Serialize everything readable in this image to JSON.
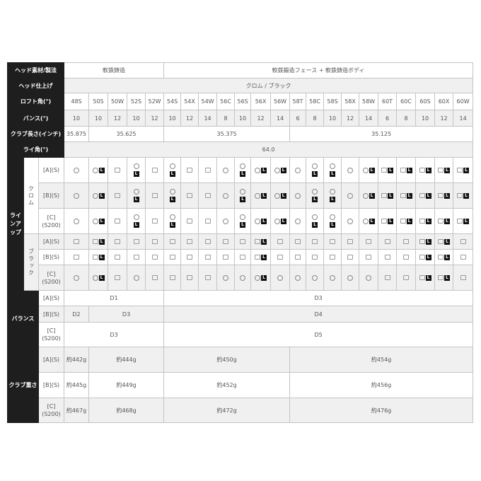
{
  "labels": {
    "head_material": "ヘッド素材/製法",
    "head_finish": "ヘッド仕上げ",
    "loft": "ロフト角(°)",
    "bounce": "バンス(°)",
    "length": "クラブ長さ(インチ)",
    "lie": "ライ角(°)",
    "lineup": "ラインアップ",
    "balance": "バランス",
    "weight": "クラブ重さ",
    "chrome": "クロム",
    "black": "ブラック",
    "shaft_a": "[A](S)",
    "shaft_b": "[B](S)",
    "shaft_c": "[C](S200)"
  },
  "lineup_icon_letter": "L",
  "head_material": [
    {
      "text": "軟鉄鋳造",
      "span": 5
    },
    {
      "text": "軟鉄鍛造フェース + 軟鉄鋳造ボディ",
      "span": 17
    }
  ],
  "head_finish": "クロム / ブラック",
  "loft": [
    "48S",
    "50S",
    "50W",
    "52S",
    "52W",
    "54S",
    "54X",
    "54W",
    "56C",
    "56S",
    "56X",
    "56W",
    "58T",
    "58C",
    "58S",
    "58X",
    "58W",
    "60T",
    "60C",
    "60S",
    "60X",
    "60W"
  ],
  "bounce": [
    "10",
    "10",
    "12",
    "10",
    "12",
    "10",
    "12",
    "14",
    "8",
    "10",
    "12",
    "14",
    "6",
    "8",
    "10",
    "12",
    "14",
    "6",
    "8",
    "10",
    "12",
    "14"
  ],
  "length": [
    {
      "text": "35.875",
      "span": 1
    },
    {
      "text": "35.625",
      "span": 4
    },
    {
      "text": "35.375",
      "span": 7
    },
    {
      "text": "35.125",
      "span": 10
    }
  ],
  "lie": "64.0",
  "lineup_legend": {
    "o": "circle",
    "s": "square",
    "L": "L-badge",
    "/": "stacked"
  },
  "lineup": {
    "chrome": {
      "a": [
        "o",
        "oL",
        "s",
        "o/L",
        "s",
        "o/L",
        "s",
        "s",
        "o",
        "o/L",
        "oL",
        "oL",
        "o",
        "o/L",
        "o/L",
        "o",
        "oL",
        "sL",
        "sL",
        "sL",
        "sL",
        "sL"
      ],
      "b": [
        "o",
        "oL",
        "s",
        "o/L",
        "s",
        "o/L",
        "s",
        "s",
        "o",
        "o/L",
        "oL",
        "oL",
        "o",
        "o/L",
        "o/L",
        "o",
        "oL",
        "sL",
        "sL",
        "sL",
        "sL",
        "sL"
      ],
      "c": [
        "o",
        "oL",
        "s",
        "o/L",
        "s",
        "o/L",
        "s",
        "s",
        "o",
        "o/L",
        "oL",
        "oL",
        "o",
        "o/L",
        "o/L",
        "o",
        "oL",
        "sL",
        "sL",
        "sL",
        "sL",
        "sL"
      ]
    },
    "black": {
      "a": [
        "s",
        "sL",
        "s",
        "s",
        "s",
        "s",
        "s",
        "s",
        "s",
        "s",
        "sL",
        "s",
        "s",
        "s",
        "s",
        "s",
        "s",
        "s",
        "s",
        "sL",
        "sL",
        "s"
      ],
      "b": [
        "s",
        "sL",
        "s",
        "s",
        "s",
        "s",
        "s",
        "s",
        "s",
        "s",
        "sL",
        "s",
        "s",
        "s",
        "s",
        "s",
        "s",
        "s",
        "s",
        "sL",
        "sL",
        "s"
      ],
      "c": [
        "o",
        "oL",
        "s",
        "o",
        "s",
        "s",
        "s",
        "s",
        "o",
        "o",
        "oL",
        "o",
        "o",
        "o",
        "o",
        "o",
        "o",
        "s",
        "s",
        "sL",
        "sL",
        "s"
      ]
    }
  },
  "balance": {
    "a": [
      {
        "text": "D1",
        "span": 5
      },
      {
        "text": "D3",
        "span": 17
      }
    ],
    "b": [
      {
        "text": "D2",
        "span": 1
      },
      {
        "text": "D3",
        "span": 4
      },
      {
        "text": "D4",
        "span": 17
      }
    ],
    "c": [
      {
        "text": "D3",
        "span": 5
      },
      {
        "text": "D5",
        "span": 17
      }
    ]
  },
  "weight": {
    "a": [
      {
        "text": "約442g",
        "span": 1
      },
      {
        "text": "約444g",
        "span": 4
      },
      {
        "text": "約450g",
        "span": 7
      },
      {
        "text": "約454g",
        "span": 10
      }
    ],
    "b": [
      {
        "text": "約445g",
        "span": 1
      },
      {
        "text": "約449g",
        "span": 4
      },
      {
        "text": "約452g",
        "span": 7
      },
      {
        "text": "約456g",
        "span": 10
      }
    ],
    "c": [
      {
        "text": "約467g",
        "span": 1
      },
      {
        "text": "約468g",
        "span": 4
      },
      {
        "text": "約472g",
        "span": 7
      },
      {
        "text": "約476g",
        "span": 10
      }
    ]
  }
}
